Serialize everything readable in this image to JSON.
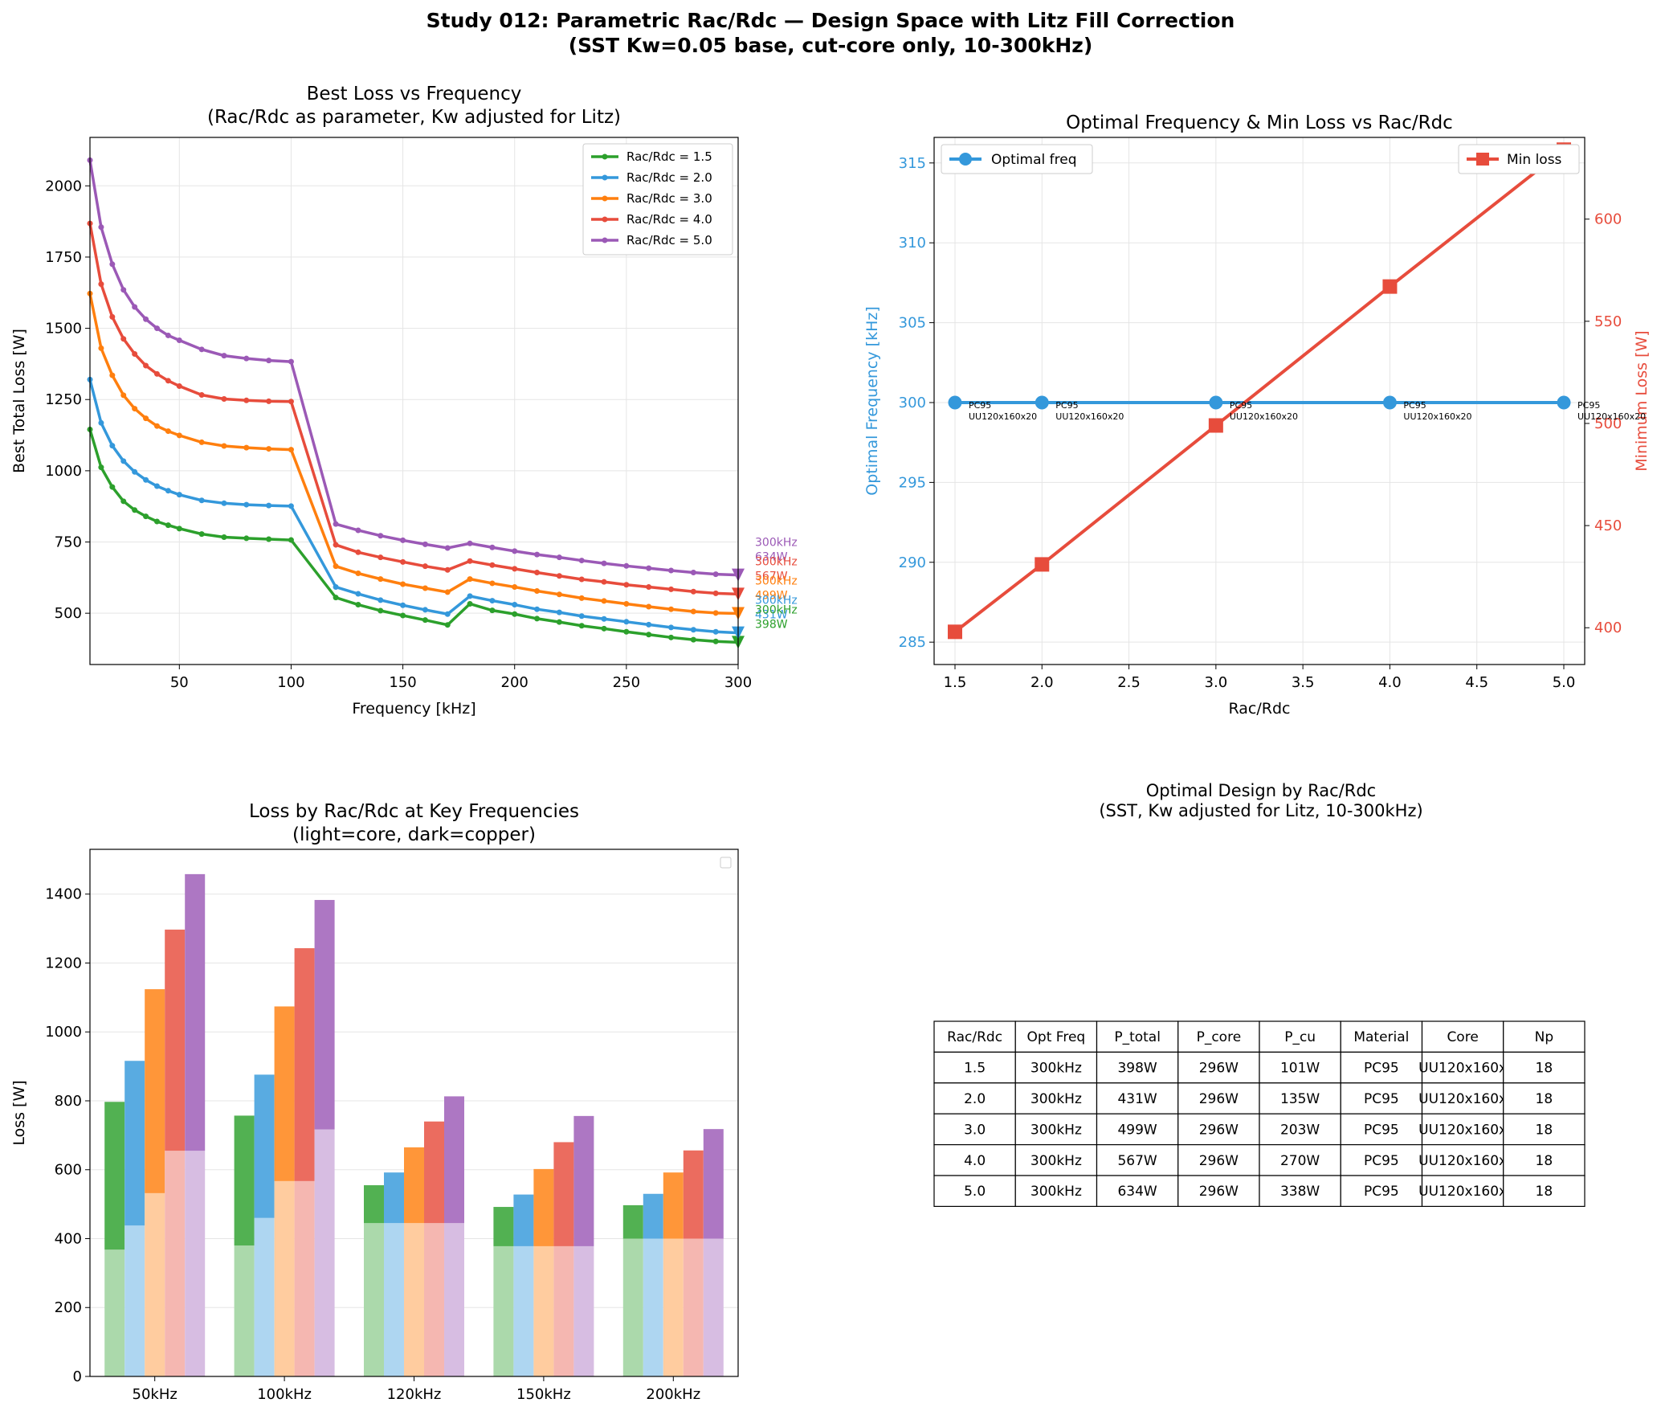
{
  "figure": {
    "suptitle_line1": "Study 012: Parametric Rac/Rdc — Design Space with Litz Fill Correction",
    "suptitle_line2": "(SST Kw=0.05 base, cut-core only, 10-300kHz)"
  },
  "colors": {
    "s15": "#2ca02c",
    "s20": "#3498db",
    "s30": "#ff7f0e",
    "s40": "#e74c3c",
    "s50": "#9b59b6",
    "freq_line": "#3498db",
    "loss_line": "#e74c3c",
    "grid": "#e5e5e5",
    "axis": "#000000"
  },
  "chart_data": [
    {
      "id": "loss-vs-frequency",
      "type": "line",
      "title_line1": "Best Loss vs Frequency",
      "title_line2": "(Rac/Rdc as parameter, Kw adjusted for Litz)",
      "xlabel": "Frequency [kHz]",
      "ylabel": "Best Total Loss [W]",
      "xlim": [
        10,
        300
      ],
      "ylim": [
        320,
        2170
      ],
      "xticks": [
        50,
        100,
        150,
        200,
        250,
        300
      ],
      "yticks": [
        500,
        750,
        1000,
        1250,
        1500,
        1750,
        2000
      ],
      "x": [
        10,
        15,
        20,
        25,
        30,
        35,
        40,
        45,
        50,
        60,
        70,
        80,
        90,
        100,
        120,
        130,
        140,
        150,
        160,
        170,
        180,
        190,
        200,
        210,
        220,
        230,
        240,
        250,
        260,
        270,
        280,
        290,
        300
      ],
      "legend_position": "upper right",
      "series": [
        {
          "name": "Rac/Rdc = 1.5",
          "color_key": "s15",
          "values": [
            1145,
            1012,
            943,
            893,
            862,
            840,
            822,
            809,
            797,
            778,
            767,
            763,
            760,
            757,
            555,
            530,
            509,
            492,
            476,
            459,
            533,
            510,
            497,
            481,
            469,
            456,
            446,
            435,
            425,
            415,
            407,
            401,
            398
          ]
        },
        {
          "name": "Rac/Rdc = 2.0",
          "color_key": "s20",
          "values": [
            1320,
            1168,
            1088,
            1034,
            996,
            968,
            946,
            930,
            916,
            896,
            886,
            881,
            878,
            876,
            592,
            568,
            546,
            528,
            512,
            497,
            560,
            544,
            530,
            514,
            503,
            490,
            480,
            470,
            460,
            450,
            442,
            435,
            431
          ]
        },
        {
          "name": "Rac/Rdc = 3.0",
          "color_key": "s30",
          "values": [
            1622,
            1430,
            1335,
            1265,
            1218,
            1184,
            1157,
            1139,
            1124,
            1100,
            1087,
            1081,
            1077,
            1074,
            665,
            640,
            620,
            602,
            588,
            574,
            620,
            605,
            592,
            578,
            566,
            553,
            543,
            533,
            523,
            514,
            506,
            501,
            499
          ]
        },
        {
          "name": "Rac/Rdc = 4.0",
          "color_key": "s40",
          "values": [
            1868,
            1655,
            1540,
            1463,
            1410,
            1369,
            1340,
            1316,
            1297,
            1266,
            1252,
            1247,
            1244,
            1243,
            740,
            714,
            696,
            680,
            665,
            652,
            683,
            669,
            656,
            643,
            631,
            619,
            610,
            600,
            592,
            584,
            576,
            570,
            567
          ]
        },
        {
          "name": "Rac/Rdc = 5.0",
          "color_key": "s50",
          "values": [
            2090,
            1855,
            1725,
            1635,
            1575,
            1532,
            1500,
            1475,
            1458,
            1426,
            1404,
            1394,
            1387,
            1383,
            813,
            791,
            772,
            756,
            742,
            729,
            745,
            731,
            718,
            706,
            696,
            685,
            675,
            666,
            658,
            650,
            643,
            637,
            634
          ]
        }
      ],
      "end_labels": [
        {
          "freq": "300kHz",
          "loss": "634W",
          "color_key": "s50"
        },
        {
          "freq": "300kHz",
          "loss": "567W",
          "color_key": "s40"
        },
        {
          "freq": "300kHz",
          "loss": "499W",
          "color_key": "s30"
        },
        {
          "freq": "300kHz",
          "loss": "431W",
          "color_key": "s20"
        },
        {
          "freq": "300kHz",
          "loss": "398W",
          "color_key": "s15"
        }
      ]
    },
    {
      "id": "optimal-frequency-min-loss",
      "type": "line",
      "title": "Optimal Frequency & Min Loss vs Rac/Rdc",
      "xlabel": "Rac/Rdc",
      "ylabel_left": "Optimal Frequency [kHz]",
      "ylabel_right": "Minimum Loss [W]",
      "xlim": [
        1.38,
        5.12
      ],
      "ylim_left": [
        283.6,
        316.6
      ],
      "ylim_right": [
        382,
        640
      ],
      "xticks": [
        1.5,
        2.0,
        2.5,
        3.0,
        3.5,
        4.0,
        4.5,
        5.0
      ],
      "yticks_left": [
        285,
        290,
        295,
        300,
        305,
        310,
        315
      ],
      "yticks_right": [
        400,
        450,
        500,
        550,
        600
      ],
      "x": [
        1.5,
        2.0,
        3.0,
        4.0,
        5.0
      ],
      "series": [
        {
          "name": "Optimal freq",
          "axis": "left",
          "values": [
            300,
            300,
            300,
            300,
            300
          ]
        },
        {
          "name": "Min loss",
          "axis": "right",
          "values": [
            398,
            431,
            499,
            567,
            634
          ]
        }
      ],
      "point_labels": [
        {
          "material": "PC95",
          "core": "UU120x160x20"
        },
        {
          "material": "PC95",
          "core": "UU120x160x20"
        },
        {
          "material": "PC95",
          "core": "UU120x160x20"
        },
        {
          "material": "PC95",
          "core": "UU120x160x20"
        },
        {
          "material": "PC95",
          "core": "UU120x160x20"
        }
      ]
    },
    {
      "id": "loss-breakdown-bars",
      "type": "bar",
      "title_line1": "Loss by Rac/Rdc at Key Frequencies",
      "title_line2": "(light=core, dark=copper)",
      "ylabel": "Loss [W]",
      "ylim": [
        0,
        1530
      ],
      "yticks": [
        0,
        200,
        400,
        600,
        800,
        1000,
        1200,
        1400
      ],
      "categories": [
        "50kHz",
        "100kHz",
        "120kHz",
        "150kHz",
        "200kHz"
      ],
      "series": [
        {
          "name": "Rac/Rdc = 1.5",
          "color_key": "s15",
          "core": [
            368,
            380,
            445,
            378,
            400
          ],
          "copper": [
            429,
            377,
            110,
            114,
            97
          ]
        },
        {
          "name": "Rac/Rdc = 2.0",
          "color_key": "s20",
          "core": [
            438,
            460,
            445,
            378,
            400
          ],
          "copper": [
            478,
            416,
            147,
            150,
            130
          ]
        },
        {
          "name": "Rac/Rdc = 3.0",
          "color_key": "s30",
          "core": [
            532,
            567,
            445,
            378,
            400
          ],
          "copper": [
            592,
            507,
            220,
            224,
            192
          ]
        },
        {
          "name": "Rac/Rdc = 4.0",
          "color_key": "s40",
          "core": [
            655,
            567,
            445,
            378,
            400
          ],
          "copper": [
            642,
            676,
            295,
            302,
            256
          ]
        },
        {
          "name": "Rac/Rdc = 5.0",
          "color_key": "s50",
          "core": [
            655,
            717,
            445,
            378,
            400
          ],
          "copper": [
            803,
            666,
            368,
            378,
            318
          ]
        }
      ]
    }
  ],
  "table": {
    "title_line1": "Optimal Design by Rac/Rdc",
    "title_line2": "(SST, Kw adjusted for Litz, 10-300kHz)",
    "headers": [
      "Rac/Rdc",
      "Opt Freq",
      "P_total",
      "P_core",
      "P_cu",
      "Material",
      "Core",
      "Np"
    ],
    "rows": [
      [
        "1.5",
        "300kHz",
        "398W",
        "296W",
        "101W",
        "PC95",
        "UU120x160x",
        "18"
      ],
      [
        "2.0",
        "300kHz",
        "431W",
        "296W",
        "135W",
        "PC95",
        "UU120x160x",
        "18"
      ],
      [
        "3.0",
        "300kHz",
        "499W",
        "296W",
        "203W",
        "PC95",
        "UU120x160x",
        "18"
      ],
      [
        "4.0",
        "300kHz",
        "567W",
        "296W",
        "270W",
        "PC95",
        "UU120x160x",
        "18"
      ],
      [
        "5.0",
        "300kHz",
        "634W",
        "296W",
        "338W",
        "PC95",
        "UU120x160x",
        "18"
      ]
    ]
  }
}
